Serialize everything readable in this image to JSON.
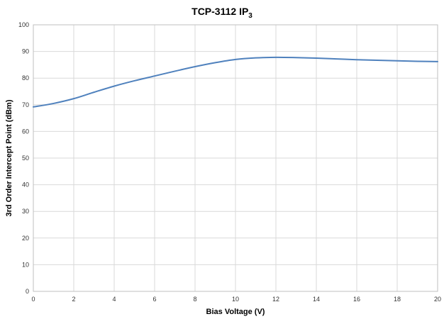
{
  "chart_data": {
    "type": "line",
    "title": {
      "main": "TCP-3112 IP",
      "subscript": "3"
    },
    "xlabel": "Bias Voltage (V)",
    "ylabel": "3rd Order Intercept Point (dBm)",
    "xlim": [
      0,
      20
    ],
    "ylim": [
      0,
      100
    ],
    "x_ticks": [
      0,
      2,
      4,
      6,
      8,
      10,
      12,
      14,
      16,
      18,
      20
    ],
    "y_ticks": [
      0,
      10,
      20,
      30,
      40,
      50,
      60,
      70,
      80,
      90,
      100
    ],
    "grid": true,
    "series": [
      {
        "color": "#4f81bd",
        "x": [
          0,
          1,
          2,
          3,
          4,
          5,
          6,
          7,
          8,
          9,
          10,
          11,
          12,
          13,
          14,
          15,
          16,
          17,
          18,
          19,
          20
        ],
        "y": [
          69.2,
          70.5,
          72.3,
          74.7,
          77.0,
          79.0,
          80.8,
          82.6,
          84.3,
          85.8,
          87.0,
          87.6,
          87.8,
          87.7,
          87.5,
          87.2,
          86.9,
          86.7,
          86.5,
          86.3,
          86.2
        ]
      }
    ]
  }
}
